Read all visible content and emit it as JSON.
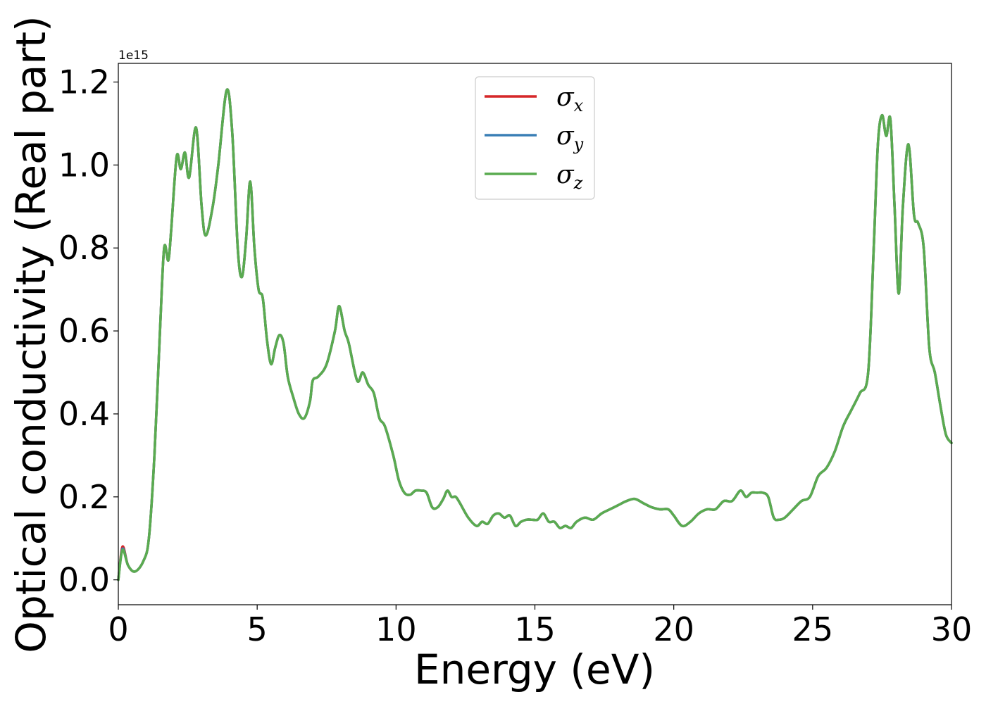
{
  "chart_data": {
    "type": "line",
    "title": "",
    "xlabel": "Energy (eV)",
    "ylabel": "Optical conductivity (Real part)",
    "y_offset_label": "1e15",
    "xlim": [
      0,
      30
    ],
    "ylim": [
      -0.06,
      1.245
    ],
    "x_ticks": [
      0,
      5,
      10,
      15,
      20,
      25,
      30
    ],
    "x_tick_labels": [
      "0",
      "5",
      "10",
      "15",
      "20",
      "25",
      "30"
    ],
    "y_ticks": [
      0.0,
      0.2,
      0.4,
      0.6,
      0.8,
      1.0,
      1.2
    ],
    "y_tick_labels": [
      "0.0",
      "0.2",
      "0.4",
      "0.6",
      "0.8",
      "1.0",
      "1.2"
    ],
    "grid": false,
    "legend_position": "upper-center",
    "colors": {
      "sigma_x": "#d62728",
      "sigma_y": "#3a7fb5",
      "sigma_z": "#5aab50"
    },
    "series": [
      {
        "symbol": "σ",
        "subscript": "x",
        "color": "#d62728",
        "width": 3.5,
        "x": [
          0,
          0.15,
          0.35,
          0.6,
          0.9,
          1.1,
          1.3,
          1.5,
          1.65,
          1.8,
          1.9,
          2.1,
          2.25,
          2.4,
          2.55,
          2.8,
          3.0,
          3.15,
          3.4,
          3.6,
          3.9,
          4.1,
          4.3,
          4.45,
          4.6,
          4.75,
          4.9,
          5.05,
          5.2,
          5.35,
          5.5,
          5.65,
          5.8,
          5.95,
          6.1,
          6.3,
          6.5,
          6.7,
          6.9,
          7.0,
          7.2,
          7.5,
          7.8,
          7.95,
          8.15,
          8.3,
          8.6,
          8.8,
          9.0,
          9.2,
          9.4,
          9.6,
          9.9,
          10.1,
          10.3,
          10.5,
          10.7,
          10.9,
          11.1,
          11.3,
          11.5,
          11.7,
          11.85,
          12.0,
          12.15,
          12.3,
          12.6,
          12.9,
          13.1,
          13.3,
          13.5,
          13.7,
          13.9,
          14.1,
          14.3,
          14.5,
          14.7,
          14.9,
          15.1,
          15.3,
          15.5,
          15.7,
          15.9,
          16.1,
          16.3,
          16.5,
          16.8,
          17.1,
          17.4,
          17.7,
          18.0,
          18.3,
          18.6,
          18.9,
          19.2,
          19.5,
          19.8,
          20.0,
          20.3,
          20.6,
          20.9,
          21.2,
          21.5,
          21.8,
          22.1,
          22.4,
          22.6,
          22.8,
          23.0,
          23.2,
          23.4,
          23.6,
          23.8,
          24.0,
          24.3,
          24.6,
          24.9,
          25.2,
          25.5,
          25.8,
          26.1,
          26.4,
          26.7,
          27.0,
          27.2,
          27.35,
          27.5,
          27.65,
          27.8,
          27.95,
          28.1,
          28.25,
          28.45,
          28.65,
          28.8,
          29.0,
          29.2,
          29.4,
          29.6,
          29.8,
          30.0
        ],
        "y": [
          0.0,
          0.08,
          0.035,
          0.02,
          0.045,
          0.1,
          0.3,
          0.6,
          0.8,
          0.77,
          0.84,
          1.02,
          0.99,
          1.03,
          0.97,
          1.09,
          0.9,
          0.83,
          0.9,
          1.0,
          1.18,
          1.08,
          0.8,
          0.73,
          0.82,
          0.96,
          0.8,
          0.7,
          0.68,
          0.58,
          0.52,
          0.56,
          0.59,
          0.57,
          0.49,
          0.44,
          0.4,
          0.39,
          0.43,
          0.48,
          0.49,
          0.52,
          0.6,
          0.66,
          0.6,
          0.57,
          0.48,
          0.5,
          0.47,
          0.45,
          0.39,
          0.37,
          0.3,
          0.24,
          0.21,
          0.205,
          0.215,
          0.215,
          0.21,
          0.175,
          0.175,
          0.195,
          0.215,
          0.2,
          0.2,
          0.185,
          0.15,
          0.13,
          0.14,
          0.135,
          0.155,
          0.16,
          0.15,
          0.155,
          0.13,
          0.14,
          0.145,
          0.145,
          0.145,
          0.16,
          0.14,
          0.14,
          0.125,
          0.13,
          0.125,
          0.14,
          0.15,
          0.145,
          0.16,
          0.17,
          0.18,
          0.19,
          0.195,
          0.185,
          0.175,
          0.17,
          0.17,
          0.155,
          0.13,
          0.14,
          0.16,
          0.17,
          0.17,
          0.19,
          0.19,
          0.215,
          0.2,
          0.21,
          0.21,
          0.21,
          0.2,
          0.15,
          0.145,
          0.15,
          0.17,
          0.19,
          0.2,
          0.25,
          0.27,
          0.31,
          0.37,
          0.41,
          0.45,
          0.5,
          0.8,
          1.05,
          1.12,
          1.07,
          1.11,
          0.9,
          0.69,
          0.9,
          1.05,
          0.88,
          0.86,
          0.8,
          0.56,
          0.5,
          0.42,
          0.35,
          0.33
        ]
      },
      {
        "symbol": "σ",
        "subscript": "y",
        "color": "#3a7fb5",
        "width": 3.5,
        "x": [
          0,
          0.15,
          0.35,
          0.6,
          0.9,
          1.1,
          1.3,
          1.5,
          1.65,
          1.8,
          1.9,
          2.1,
          2.25,
          2.4,
          2.55,
          2.8,
          3.0,
          3.15,
          3.4,
          3.6,
          3.9,
          4.1,
          4.3,
          4.45,
          4.6,
          4.75,
          4.9,
          5.05,
          5.2,
          5.35,
          5.5,
          5.65,
          5.8,
          5.95,
          6.1,
          6.3,
          6.5,
          6.7,
          6.9,
          7.0,
          7.2,
          7.5,
          7.8,
          7.95,
          8.15,
          8.3,
          8.6,
          8.8,
          9.0,
          9.2,
          9.4,
          9.6,
          9.9,
          10.1,
          10.3,
          10.5,
          10.7,
          10.9,
          11.1,
          11.3,
          11.5,
          11.7,
          11.85,
          12.0,
          12.15,
          12.3,
          12.6,
          12.9,
          13.1,
          13.3,
          13.5,
          13.7,
          13.9,
          14.1,
          14.3,
          14.5,
          14.7,
          14.9,
          15.1,
          15.3,
          15.5,
          15.7,
          15.9,
          16.1,
          16.3,
          16.5,
          16.8,
          17.1,
          17.4,
          17.7,
          18.0,
          18.3,
          18.6,
          18.9,
          19.2,
          19.5,
          19.8,
          20.0,
          20.3,
          20.6,
          20.9,
          21.2,
          21.5,
          21.8,
          22.1,
          22.4,
          22.6,
          22.8,
          23.0,
          23.2,
          23.4,
          23.6,
          23.8,
          24.0,
          24.3,
          24.6,
          24.9,
          25.2,
          25.5,
          25.8,
          26.1,
          26.4,
          26.7,
          27.0,
          27.2,
          27.35,
          27.5,
          27.65,
          27.8,
          27.95,
          28.1,
          28.25,
          28.45,
          28.65,
          28.8,
          29.0,
          29.2,
          29.4,
          29.6,
          29.8,
          30.0
        ],
        "y": [
          0.0,
          0.075,
          0.035,
          0.02,
          0.045,
          0.1,
          0.3,
          0.6,
          0.8,
          0.77,
          0.84,
          1.02,
          0.99,
          1.03,
          0.97,
          1.09,
          0.9,
          0.83,
          0.9,
          1.0,
          1.18,
          1.08,
          0.8,
          0.73,
          0.82,
          0.96,
          0.8,
          0.7,
          0.68,
          0.58,
          0.52,
          0.56,
          0.59,
          0.57,
          0.49,
          0.44,
          0.4,
          0.39,
          0.43,
          0.48,
          0.49,
          0.52,
          0.6,
          0.66,
          0.6,
          0.57,
          0.48,
          0.5,
          0.47,
          0.45,
          0.39,
          0.37,
          0.3,
          0.24,
          0.21,
          0.205,
          0.215,
          0.215,
          0.21,
          0.175,
          0.175,
          0.195,
          0.215,
          0.2,
          0.2,
          0.185,
          0.15,
          0.13,
          0.14,
          0.135,
          0.155,
          0.16,
          0.15,
          0.155,
          0.13,
          0.14,
          0.145,
          0.145,
          0.145,
          0.16,
          0.14,
          0.14,
          0.125,
          0.13,
          0.125,
          0.14,
          0.15,
          0.145,
          0.16,
          0.17,
          0.18,
          0.19,
          0.195,
          0.185,
          0.175,
          0.17,
          0.17,
          0.155,
          0.13,
          0.14,
          0.16,
          0.17,
          0.17,
          0.19,
          0.19,
          0.215,
          0.2,
          0.21,
          0.21,
          0.21,
          0.2,
          0.15,
          0.145,
          0.15,
          0.17,
          0.19,
          0.2,
          0.25,
          0.27,
          0.31,
          0.37,
          0.41,
          0.45,
          0.5,
          0.8,
          1.05,
          1.12,
          1.07,
          1.11,
          0.9,
          0.69,
          0.9,
          1.05,
          0.88,
          0.86,
          0.8,
          0.56,
          0.5,
          0.42,
          0.35,
          0.33
        ]
      },
      {
        "symbol": "σ",
        "subscript": "z",
        "color": "#5aab50",
        "width": 3.5,
        "x": [
          0,
          0.15,
          0.35,
          0.6,
          0.9,
          1.1,
          1.3,
          1.5,
          1.65,
          1.8,
          1.9,
          2.1,
          2.25,
          2.4,
          2.55,
          2.8,
          3.0,
          3.15,
          3.4,
          3.6,
          3.9,
          4.1,
          4.3,
          4.45,
          4.6,
          4.75,
          4.9,
          5.05,
          5.2,
          5.35,
          5.5,
          5.65,
          5.8,
          5.95,
          6.1,
          6.3,
          6.5,
          6.7,
          6.9,
          7.0,
          7.2,
          7.5,
          7.8,
          7.95,
          8.15,
          8.3,
          8.6,
          8.8,
          9.0,
          9.2,
          9.4,
          9.6,
          9.9,
          10.1,
          10.3,
          10.5,
          10.7,
          10.9,
          11.1,
          11.3,
          11.5,
          11.7,
          11.85,
          12.0,
          12.15,
          12.3,
          12.6,
          12.9,
          13.1,
          13.3,
          13.5,
          13.7,
          13.9,
          14.1,
          14.3,
          14.5,
          14.7,
          14.9,
          15.1,
          15.3,
          15.5,
          15.7,
          15.9,
          16.1,
          16.3,
          16.5,
          16.8,
          17.1,
          17.4,
          17.7,
          18.0,
          18.3,
          18.6,
          18.9,
          19.2,
          19.5,
          19.8,
          20.0,
          20.3,
          20.6,
          20.9,
          21.2,
          21.5,
          21.8,
          22.1,
          22.4,
          22.6,
          22.8,
          23.0,
          23.2,
          23.4,
          23.6,
          23.8,
          24.0,
          24.3,
          24.6,
          24.9,
          25.2,
          25.5,
          25.8,
          26.1,
          26.4,
          26.7,
          27.0,
          27.2,
          27.35,
          27.5,
          27.65,
          27.8,
          27.95,
          28.1,
          28.25,
          28.45,
          28.65,
          28.8,
          29.0,
          29.2,
          29.4,
          29.6,
          29.8,
          30.0
        ],
        "y": [
          0.0,
          0.072,
          0.035,
          0.02,
          0.045,
          0.1,
          0.3,
          0.6,
          0.8,
          0.77,
          0.84,
          1.02,
          0.99,
          1.03,
          0.97,
          1.09,
          0.9,
          0.83,
          0.9,
          1.0,
          1.18,
          1.08,
          0.8,
          0.73,
          0.82,
          0.96,
          0.8,
          0.7,
          0.68,
          0.58,
          0.52,
          0.56,
          0.59,
          0.57,
          0.49,
          0.44,
          0.4,
          0.39,
          0.43,
          0.48,
          0.49,
          0.52,
          0.6,
          0.66,
          0.6,
          0.57,
          0.48,
          0.5,
          0.47,
          0.45,
          0.39,
          0.37,
          0.3,
          0.24,
          0.21,
          0.205,
          0.215,
          0.215,
          0.21,
          0.175,
          0.175,
          0.195,
          0.215,
          0.2,
          0.2,
          0.185,
          0.15,
          0.13,
          0.14,
          0.135,
          0.155,
          0.16,
          0.15,
          0.155,
          0.13,
          0.14,
          0.145,
          0.145,
          0.145,
          0.16,
          0.14,
          0.14,
          0.125,
          0.13,
          0.125,
          0.14,
          0.15,
          0.145,
          0.16,
          0.17,
          0.18,
          0.19,
          0.195,
          0.185,
          0.175,
          0.17,
          0.17,
          0.155,
          0.13,
          0.14,
          0.16,
          0.17,
          0.17,
          0.19,
          0.19,
          0.215,
          0.2,
          0.21,
          0.21,
          0.21,
          0.2,
          0.15,
          0.145,
          0.15,
          0.17,
          0.19,
          0.2,
          0.25,
          0.27,
          0.31,
          0.37,
          0.41,
          0.45,
          0.5,
          0.8,
          1.05,
          1.12,
          1.07,
          1.11,
          0.9,
          0.69,
          0.9,
          1.05,
          0.88,
          0.86,
          0.8,
          0.56,
          0.5,
          0.42,
          0.35,
          0.33
        ]
      }
    ]
  }
}
